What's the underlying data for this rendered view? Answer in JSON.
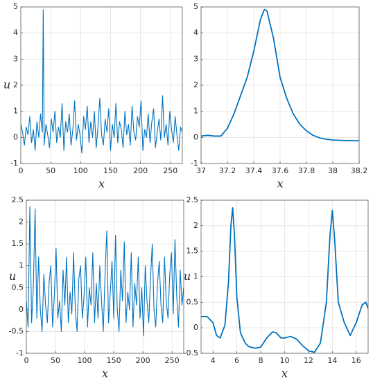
{
  "chart_data": [
    {
      "type": "line",
      "x_label": "x",
      "y_label": "u",
      "color": "#0072bd",
      "grid": true,
      "xlim": [
        0,
        270
      ],
      "ylim": [
        -1,
        5
      ],
      "xticks": [
        0,
        50,
        100,
        150,
        200,
        250
      ],
      "yticks": [
        -1,
        0,
        1,
        2,
        3,
        4,
        5
      ],
      "x": [
        0,
        3,
        6,
        9,
        12,
        15,
        18,
        21,
        24,
        27,
        30,
        33,
        36,
        37.5,
        39,
        42,
        45,
        48,
        51,
        54,
        57,
        60,
        63,
        66,
        69,
        72,
        75,
        78,
        81,
        84,
        87,
        90,
        93,
        96,
        99,
        102,
        105,
        108,
        111,
        114,
        117,
        120,
        123,
        126,
        129,
        132,
        135,
        138,
        141,
        144,
        147,
        150,
        153,
        156,
        159,
        162,
        165,
        168,
        171,
        174,
        177,
        180,
        183,
        186,
        189,
        192,
        195,
        198,
        201,
        204,
        207,
        210,
        213,
        216,
        219,
        222,
        225,
        228,
        231,
        234,
        237,
        240,
        243,
        246,
        249,
        252,
        255,
        258,
        261,
        264,
        267,
        270
      ],
      "values": [
        0.5,
        0.2,
        -0.3,
        0.4,
        0.1,
        0.8,
        -0.2,
        0.3,
        -0.5,
        0.6,
        0.0,
        0.9,
        0.2,
        4.9,
        -0.3,
        0.5,
        0.1,
        -0.4,
        0.7,
        0.2,
        1.0,
        -0.2,
        0.4,
        0.0,
        1.3,
        -0.5,
        0.6,
        0.2,
        0.9,
        -0.3,
        0.3,
        1.4,
        -0.1,
        0.5,
        0.1,
        -0.6,
        0.8,
        0.3,
        1.2,
        -0.2,
        0.6,
        0.0,
        1.0,
        -0.4,
        0.4,
        1.5,
        0.1,
        -0.3,
        0.7,
        0.2,
        1.1,
        -0.5,
        0.5,
        0.0,
        1.3,
        -0.2,
        0.6,
        0.3,
        -0.4,
        1.0,
        0.1,
        0.5,
        -0.3,
        1.2,
        0.2,
        -0.1,
        0.8,
        0.4,
        1.4,
        -0.5,
        0.3,
        0.0,
        0.9,
        -0.2,
        0.6,
        1.1,
        -0.4,
        0.2,
        0.7,
        -0.1,
        1.6,
        0.0,
        0.5,
        -0.3,
        1.0,
        0.3,
        -0.2,
        0.8,
        0.1,
        -0.5,
        0.4,
        0.2
      ]
    },
    {
      "type": "line",
      "x_label": "x",
      "color": "#0072bd",
      "grid": true,
      "xlim": [
        37,
        38.2
      ],
      "ylim": [
        -1,
        5
      ],
      "xticks": [
        37,
        37.2,
        37.4,
        37.6,
        37.8,
        38,
        38.2
      ],
      "yticks": [
        -1,
        0,
        1,
        2,
        3,
        4,
        5
      ],
      "x": [
        37.0,
        37.05,
        37.1,
        37.15,
        37.2,
        37.25,
        37.3,
        37.35,
        37.4,
        37.45,
        37.48,
        37.5,
        37.55,
        37.6,
        37.65,
        37.7,
        37.75,
        37.8,
        37.85,
        37.9,
        37.95,
        38.0,
        38.1,
        38.2
      ],
      "values": [
        0.05,
        0.08,
        0.05,
        0.05,
        0.35,
        0.9,
        1.6,
        2.3,
        3.3,
        4.5,
        4.9,
        4.85,
        3.8,
        2.3,
        1.5,
        0.9,
        0.5,
        0.25,
        0.08,
        -0.02,
        -0.07,
        -0.1,
        -0.12,
        -0.13
      ]
    },
    {
      "type": "line",
      "x_label": "x",
      "y_label": "u",
      "color": "#0072bd",
      "grid": true,
      "xlim": [
        0,
        270
      ],
      "ylim": [
        -1,
        2.5
      ],
      "xticks": [
        0,
        50,
        100,
        150,
        200,
        250
      ],
      "yticks": [
        -1,
        -0.5,
        0,
        0.5,
        1,
        1.5,
        2,
        2.5
      ],
      "x": [
        0,
        3,
        6,
        9,
        12,
        15,
        18,
        21,
        24,
        27,
        30,
        33,
        36,
        39,
        42,
        45,
        48,
        51,
        54,
        57,
        60,
        63,
        66,
        69,
        72,
        75,
        78,
        81,
        84,
        87,
        90,
        93,
        96,
        99,
        102,
        105,
        108,
        111,
        114,
        117,
        120,
        123,
        126,
        129,
        132,
        135,
        138,
        141,
        144,
        147,
        150,
        153,
        156,
        159,
        162,
        165,
        168,
        171,
        174,
        177,
        180,
        183,
        186,
        189,
        192,
        195,
        198,
        201,
        204,
        207,
        210,
        213,
        216,
        219,
        222,
        225,
        228,
        231,
        234,
        237,
        240,
        243,
        246,
        249,
        252,
        255,
        258,
        261,
        264,
        267,
        270
      ],
      "values": [
        0.2,
        -0.4,
        2.35,
        -0.3,
        0.5,
        2.3,
        -0.2,
        1.2,
        0.0,
        -0.5,
        0.8,
        0.1,
        -0.3,
        0.6,
        1.0,
        -0.4,
        0.3,
        1.4,
        -0.2,
        0.2,
        -0.5,
        0.9,
        0.1,
        1.2,
        -0.3,
        0.4,
        -0.1,
        1.3,
        0.0,
        -0.5,
        0.7,
        1.0,
        -0.2,
        0.3,
        1.2,
        -0.4,
        0.5,
        0.1,
        1.3,
        -0.3,
        0.6,
        -0.2,
        1.0,
        0.2,
        -0.5,
        0.8,
        1.8,
        -0.3,
        0.4,
        1.1,
        -0.2,
        1.7,
        0.0,
        -0.5,
        0.9,
        0.2,
        1.55,
        -0.3,
        0.4,
        0.0,
        1.3,
        -0.4,
        0.6,
        0.1,
        1.2,
        -0.2,
        0.5,
        -0.6,
        1.0,
        0.2,
        -0.3,
        0.7,
        1.5,
        0.0,
        -0.4,
        0.6,
        1.1,
        0.1,
        -0.3,
        1.2,
        0.2,
        -0.2,
        0.8,
        1.3,
        -0.1,
        1.6,
        0.3,
        -0.4,
        0.9,
        0.1,
        0.5
      ]
    },
    {
      "type": "line",
      "x_label": "x",
      "y_label": "u",
      "color": "#0072bd",
      "grid": true,
      "xlim": [
        3,
        17
      ],
      "ylim": [
        -0.5,
        2.5
      ],
      "xticks": [
        4,
        6,
        8,
        10,
        12,
        14,
        16
      ],
      "yticks": [
        -0.5,
        0,
        0.5,
        1,
        1.5,
        2,
        2.5
      ],
      "x": [
        3,
        3.5,
        4,
        4.3,
        4.6,
        5,
        5.3,
        5.5,
        5.65,
        5.8,
        6,
        6.3,
        6.7,
        7,
        7.5,
        8,
        8.5,
        9,
        9.3,
        9.7,
        10,
        10.5,
        11,
        11.5,
        12,
        12.5,
        13,
        13.5,
        13.8,
        14,
        14.2,
        14.5,
        15,
        15.5,
        16,
        16.5,
        16.8,
        17
      ],
      "values": [
        0.22,
        0.22,
        0.1,
        -0.15,
        -0.2,
        0.05,
        0.9,
        2.0,
        2.35,
        1.8,
        0.6,
        -0.1,
        -0.3,
        -0.37,
        -0.4,
        -0.38,
        -0.2,
        -0.08,
        -0.1,
        -0.2,
        -0.2,
        -0.17,
        -0.22,
        -0.35,
        -0.45,
        -0.48,
        -0.3,
        0.5,
        1.8,
        2.3,
        1.7,
        0.5,
        0.1,
        -0.15,
        0.1,
        0.45,
        0.5,
        0.38
      ]
    }
  ]
}
